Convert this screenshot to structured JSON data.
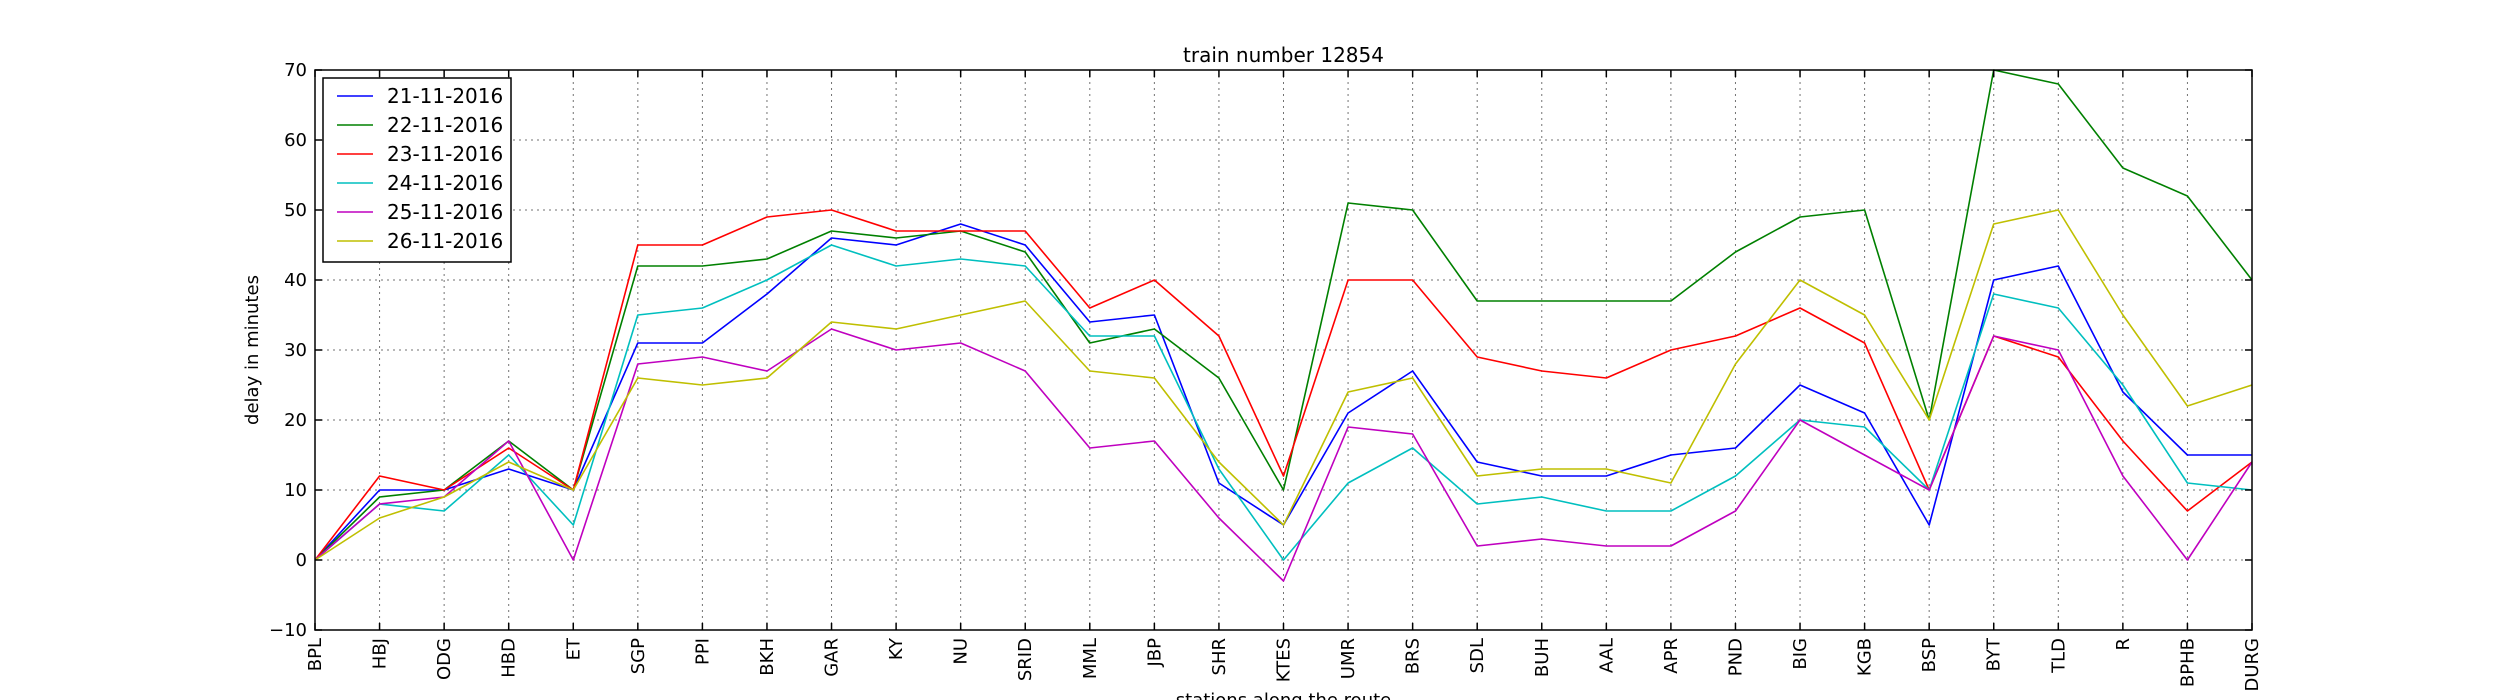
{
  "chart_data": {
    "type": "line",
    "title": "train number 12854",
    "xlabel": "stations along the route",
    "ylabel": "delay in minutes",
    "ylim": [
      -10,
      70
    ],
    "yticks": [
      -10,
      0,
      10,
      20,
      30,
      40,
      50,
      60,
      70
    ],
    "grid": true,
    "legend_position": "top-left",
    "categories": [
      "BPL",
      "HBJ",
      "ODG",
      "HBD",
      "ET",
      "SGP",
      "PPI",
      "BKH",
      "GAR",
      "KY",
      "NU",
      "SRID",
      "MML",
      "JBP",
      "SHR",
      "KTES",
      "UMR",
      "BRS",
      "SDL",
      "BUH",
      "AAL",
      "APR",
      "PND",
      "BIG",
      "KGB",
      "BSP",
      "BYT",
      "TLD",
      "R",
      "BPHB",
      "DURG"
    ],
    "series": [
      {
        "name": "21-11-2016",
        "color": "#0000ff",
        "values": [
          0,
          10,
          10,
          13,
          10,
          31,
          31,
          38,
          46,
          45,
          48,
          45,
          34,
          35,
          11,
          5,
          21,
          27,
          14,
          12,
          12,
          15,
          16,
          25,
          21,
          5,
          40,
          42,
          24,
          15,
          15
        ]
      },
      {
        "name": "22-11-2016",
        "color": "#008000",
        "values": [
          0,
          9,
          10,
          17,
          10,
          42,
          42,
          43,
          47,
          46,
          47,
          44,
          31,
          33,
          26,
          10,
          51,
          50,
          37,
          37,
          37,
          37,
          44,
          49,
          50,
          20,
          70,
          68,
          56,
          52,
          40
        ]
      },
      {
        "name": "23-11-2016",
        "color": "#ff0000",
        "values": [
          0,
          12,
          10,
          16,
          10,
          45,
          45,
          49,
          50,
          47,
          47,
          47,
          36,
          40,
          32,
          12,
          40,
          40,
          29,
          27,
          26,
          30,
          32,
          36,
          31,
          10,
          32,
          29,
          17,
          7,
          14
        ]
      },
      {
        "name": "24-11-2016",
        "color": "#00bfbf",
        "values": [
          0,
          8,
          7,
          15,
          5,
          35,
          36,
          40,
          45,
          42,
          43,
          42,
          32,
          32,
          13,
          0,
          11,
          16,
          8,
          9,
          7,
          7,
          12,
          20,
          19,
          10,
          38,
          36,
          25,
          11,
          10
        ]
      },
      {
        "name": "25-11-2016",
        "color": "#bf00bf",
        "values": [
          0,
          8,
          9,
          17,
          0,
          28,
          29,
          27,
          33,
          30,
          31,
          27,
          16,
          17,
          6,
          -3,
          19,
          18,
          2,
          3,
          2,
          2,
          7,
          20,
          15,
          10,
          32,
          30,
          12,
          0,
          14
        ]
      },
      {
        "name": "26-11-2016",
        "color": "#bfbf00",
        "values": [
          0,
          6,
          9,
          14,
          10,
          26,
          25,
          26,
          34,
          33,
          35,
          37,
          27,
          26,
          14,
          5,
          24,
          26,
          12,
          13,
          13,
          11,
          28,
          40,
          35,
          20,
          48,
          50,
          35,
          22,
          25
        ]
      }
    ]
  }
}
